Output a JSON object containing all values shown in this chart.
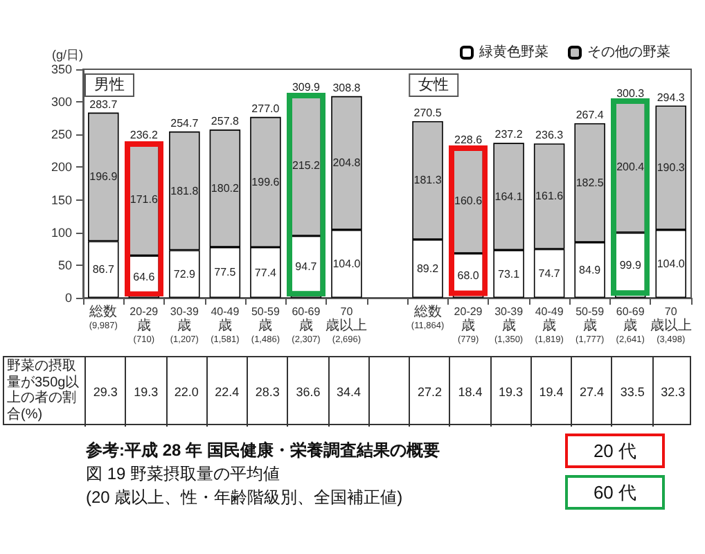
{
  "chart_data": [
    {
      "type": "bar",
      "title": "図 19 野菜摂取量の平均値",
      "subtitle": "(20 歳以上、性・年齢階級別、全国補正値)",
      "ylabel": "(g/日)",
      "categories": [
        "総数\n(9,987)",
        "20-29歳\n(710)",
        "30-39歳\n(1,207)",
        "40-49歳\n(1,581)",
        "50-59歳\n(1,486)",
        "60-69歳\n(2,307)",
        "70歳以上\n(2,696)",
        null,
        "総数\n(11,864)",
        "20-29歳\n(779)",
        "30-39歳\n(1,350)",
        "40-49歳\n(1,819)",
        "50-59歳\n(1,777)",
        "60-69歳\n(2,641)",
        "70歳以上\n(3,498)"
      ],
      "stacked": true,
      "series": [
        {
          "name": "緑黄色野菜",
          "color": "#ffffff",
          "values": [
            86.7,
            64.6,
            72.9,
            77.5,
            77.4,
            94.7,
            104.0,
            null,
            89.2,
            68.0,
            73.1,
            74.7,
            84.9,
            99.9,
            104.0
          ],
          "value_labels": [
            "86.7",
            "64.6",
            "72.9",
            "77.5",
            "77.4",
            "94.7",
            "104.0",
            null,
            "89.2",
            "68.0",
            "73.1",
            "74.7",
            "84.9",
            "99.9",
            "104.0"
          ]
        },
        {
          "name": "その他の野菜",
          "color": "#bfbfbf",
          "values": [
            196.9,
            171.6,
            181.8,
            180.2,
            199.6,
            215.2,
            204.8,
            null,
            181.3,
            160.6,
            164.1,
            161.6,
            182.5,
            200.4,
            190.3
          ],
          "value_labels": [
            "196.9",
            "171.6",
            "181.8",
            "180.2",
            "199.6",
            "215.2",
            "204.8",
            null,
            "181.3",
            "160.6",
            "164.1",
            "161.6",
            "182.5",
            "200.4",
            "190.3"
          ]
        }
      ],
      "totals": [
        "283.7",
        "236.2",
        "254.7",
        "257.8",
        "277.0",
        "309.9",
        "308.8",
        null,
        "270.5",
        "228.6",
        "237.2",
        "236.3",
        "267.4",
        "300.3",
        "294.3"
      ],
      "ylim": [
        0,
        350
      ],
      "yticks": [
        0,
        50,
        100,
        150,
        200,
        250,
        300,
        350
      ],
      "grid": false,
      "legend": "top right",
      "annotations": [
        "男性",
        "女性",
        "参考:平成 28 年 国民健康・栄養調査結果の概要",
        "20 代",
        "60 代"
      ]
    },
    {
      "type": "other",
      "title": "野菜の摂取量が350g以上の者の割合(%)",
      "values": [
        29.3,
        19.3,
        22.0,
        22.4,
        28.3,
        36.6,
        34.4,
        null,
        27.2,
        18.4,
        19.3,
        19.4,
        27.4,
        33.5,
        32.3
      ],
      "value_labels": [
        "29.3",
        "19.3",
        "22.0",
        "22.4",
        "28.3",
        "36.6",
        "34.4",
        null,
        "27.2",
        "18.4",
        "19.3",
        "19.4",
        "27.4",
        "33.5",
        "32.3"
      ]
    }
  ]
}
